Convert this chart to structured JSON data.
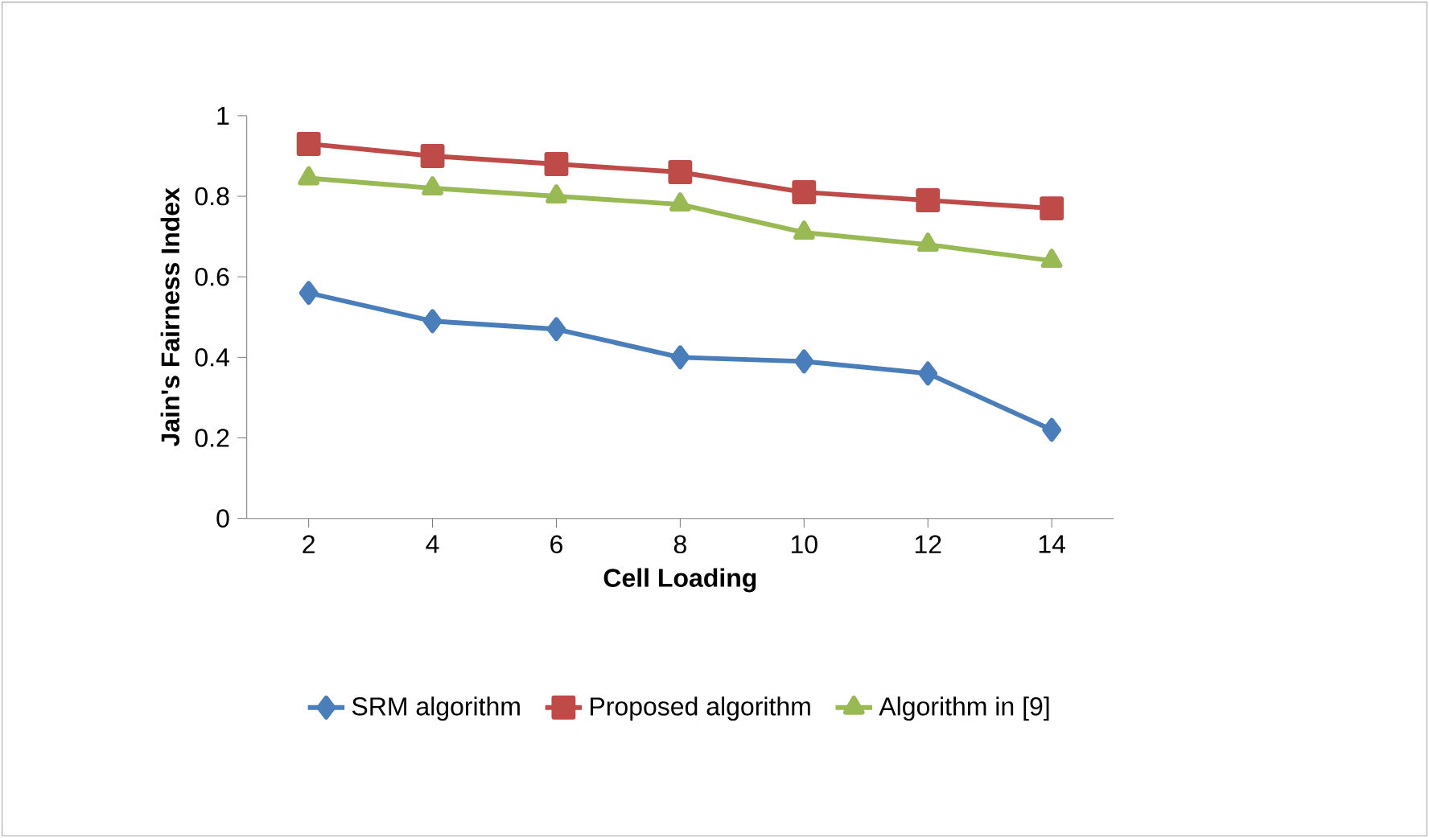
{
  "chart_data": {
    "type": "line",
    "xlabel": "Cell Loading",
    "ylabel": "Jain's Fairness Index",
    "categories": [
      "2",
      "4",
      "6",
      "8",
      "10",
      "12",
      "14"
    ],
    "ylim": [
      0,
      1
    ],
    "yticks": [
      0,
      0.2,
      0.4,
      0.6,
      0.8,
      1
    ],
    "series": [
      {
        "name": "SRM algorithm",
        "color": "#4a7ebb",
        "marker": "diamond",
        "values": [
          0.56,
          0.49,
          0.47,
          0.4,
          0.39,
          0.36,
          0.22
        ]
      },
      {
        "name": "Proposed algorithm",
        "color": "#be4b48",
        "marker": "square",
        "values": [
          0.93,
          0.9,
          0.88,
          0.86,
          0.81,
          0.79,
          0.77
        ]
      },
      {
        "name": "Algorithm in [9]",
        "color": "#98b954",
        "marker": "triangle",
        "values": [
          0.845,
          0.82,
          0.8,
          0.78,
          0.71,
          0.68,
          0.64
        ]
      }
    ],
    "legend": "bottom",
    "grid": false,
    "line_style": "solid"
  }
}
